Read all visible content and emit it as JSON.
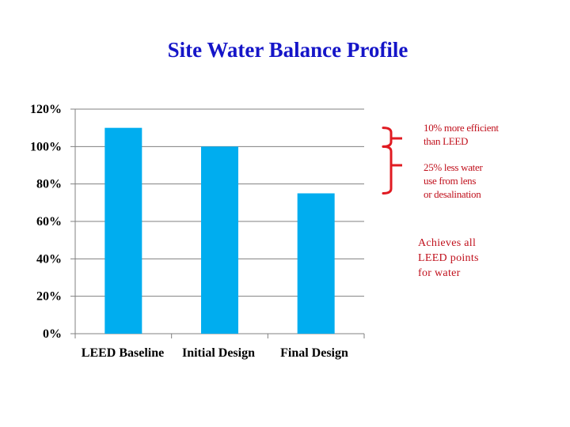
{
  "colors": {
    "title": "#1515c8",
    "bar": "#00adef",
    "grid": "#808080",
    "annotation": "#c0101c",
    "bracket": "#e01b22"
  },
  "chart_data": {
    "type": "bar",
    "title": "Site Water Balance Profile",
    "xlabel": "",
    "ylabel": "",
    "categories": [
      "LEED Baseline",
      "Initial Design",
      "Final Design"
    ],
    "values": [
      110,
      100,
      75
    ],
    "ylim": [
      0,
      120
    ],
    "yticks": [
      0,
      20,
      40,
      60,
      80,
      100,
      120
    ],
    "tick_format": "{v}%",
    "grid": true,
    "legend": "none",
    "annotations": [
      "10% more efficient\nthan LEED",
      "25% less water\nuse from lens\nor desalination",
      "Achieves all\nLEED points\nfor water"
    ]
  }
}
